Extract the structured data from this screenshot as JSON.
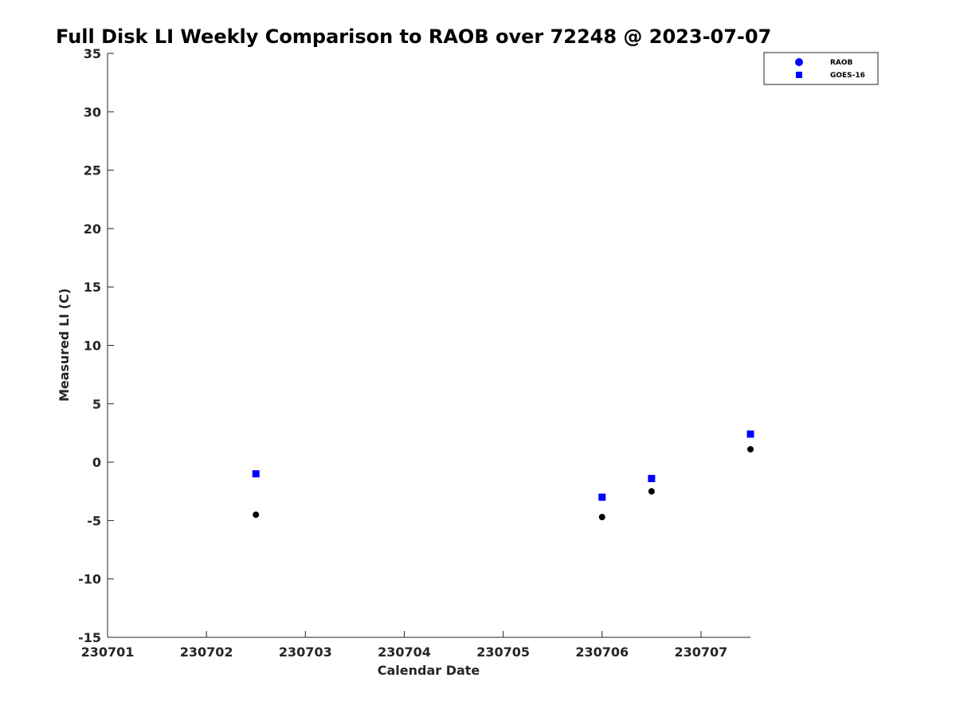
{
  "chart_data": {
    "type": "scatter",
    "title": "Full Disk LI Weekly Comparison to RAOB over 72248 @ 2023-07-07",
    "xlabel": "Calendar Date",
    "ylabel": "Measured LI (C)",
    "xlim": [
      230701,
      230707.5
    ],
    "ylim": [
      -15,
      35
    ],
    "x_ticks": [
      230701,
      230702,
      230703,
      230704,
      230705,
      230706,
      230707
    ],
    "x_tick_labels": [
      "230701",
      "230702",
      "230703",
      "230704",
      "230705",
      "230706",
      "230707"
    ],
    "y_ticks": [
      -15,
      -10,
      -5,
      0,
      5,
      10,
      15,
      20,
      25,
      30,
      35
    ],
    "y_tick_labels": [
      "-15",
      "-10",
      "-5",
      "0",
      "5",
      "10",
      "15",
      "20",
      "25",
      "30",
      "35"
    ],
    "grid": false,
    "legend_position": "top-right",
    "legend": [
      "RAOB",
      "GOES-16"
    ],
    "series": [
      {
        "name": "RAOB",
        "marker": "circle",
        "color": "#000000",
        "legend_color": "#0000ff",
        "x": [
          230702.5,
          230706,
          230706.5,
          230707.5
        ],
        "y": [
          -4.5,
          -4.7,
          -2.5,
          1.1
        ]
      },
      {
        "name": "GOES-16",
        "marker": "square",
        "color": "#0000ff",
        "x": [
          230702.5,
          230706,
          230706.5,
          230707.5
        ],
        "y": [
          -1.0,
          -3.0,
          -1.4,
          2.4
        ]
      }
    ]
  }
}
